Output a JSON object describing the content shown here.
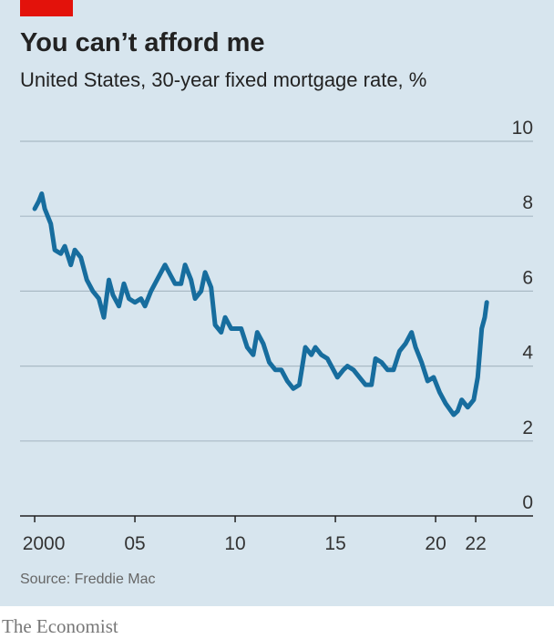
{
  "chart_data": {
    "type": "line",
    "title": "You can’t afford me",
    "subtitle": "United States, 30-year fixed mortgage rate, %",
    "source": "Source: Freddie Mac",
    "brand": "The Economist",
    "x": [
      2000.0,
      2000.2,
      2000.35,
      2000.5,
      2000.8,
      2001.0,
      2001.3,
      2001.5,
      2001.8,
      2002.0,
      2002.3,
      2002.6,
      2002.9,
      2003.2,
      2003.45,
      2003.7,
      2003.9,
      2004.2,
      2004.45,
      2004.7,
      2005.0,
      2005.3,
      2005.5,
      2005.8,
      2006.0,
      2006.3,
      2006.5,
      2006.8,
      2007.0,
      2007.3,
      2007.5,
      2007.8,
      2008.0,
      2008.3,
      2008.5,
      2008.8,
      2009.0,
      2009.3,
      2009.5,
      2009.8,
      2010.0,
      2010.3,
      2010.6,
      2010.9,
      2011.1,
      2011.4,
      2011.7,
      2012.0,
      2012.3,
      2012.6,
      2012.9,
      2013.2,
      2013.5,
      2013.8,
      2014.0,
      2014.3,
      2014.6,
      2014.9,
      2015.1,
      2015.4,
      2015.6,
      2015.9,
      2016.2,
      2016.5,
      2016.8,
      2017.0,
      2017.3,
      2017.6,
      2017.9,
      2018.2,
      2018.5,
      2018.8,
      2019.0,
      2019.3,
      2019.6,
      2019.9,
      2020.2,
      2020.5,
      2020.9,
      2021.1,
      2021.3,
      2021.6,
      2021.9,
      2022.1,
      2022.3,
      2022.45,
      2022.55
    ],
    "series": [
      {
        "name": "30-year fixed mortgage rate",
        "color": "#176d9e",
        "values": [
          8.2,
          8.4,
          8.6,
          8.2,
          7.8,
          7.1,
          7.0,
          7.2,
          6.7,
          7.1,
          6.9,
          6.3,
          6.0,
          5.8,
          5.3,
          6.3,
          5.9,
          5.6,
          6.2,
          5.8,
          5.7,
          5.8,
          5.6,
          6.0,
          6.2,
          6.5,
          6.7,
          6.4,
          6.2,
          6.2,
          6.7,
          6.3,
          5.8,
          6.0,
          6.5,
          6.1,
          5.1,
          4.9,
          5.3,
          5.0,
          5.0,
          5.0,
          4.5,
          4.3,
          4.9,
          4.6,
          4.1,
          3.9,
          3.9,
          3.6,
          3.4,
          3.5,
          4.5,
          4.3,
          4.5,
          4.3,
          4.2,
          3.9,
          3.7,
          3.9,
          4.0,
          3.9,
          3.7,
          3.5,
          3.5,
          4.2,
          4.1,
          3.9,
          3.9,
          4.4,
          4.6,
          4.9,
          4.5,
          4.1,
          3.6,
          3.7,
          3.3,
          3.0,
          2.7,
          2.8,
          3.1,
          2.9,
          3.1,
          3.7,
          5.0,
          5.3,
          5.7
        ]
      }
    ],
    "xlim": [
      1999.27,
      2024.86
    ],
    "xticks": [
      2000,
      {
        "value": 2005,
        "label": "05"
      },
      {
        "value": 2010,
        "label": "10"
      },
      {
        "value": 2015,
        "label": "15"
      },
      {
        "value": 2020,
        "label": "20"
      },
      {
        "value": 2022,
        "label": "22"
      }
    ],
    "ylim": [
      0,
      10
    ],
    "yticks": [
      0,
      2,
      4,
      6,
      8,
      10
    ],
    "grid": true
  }
}
